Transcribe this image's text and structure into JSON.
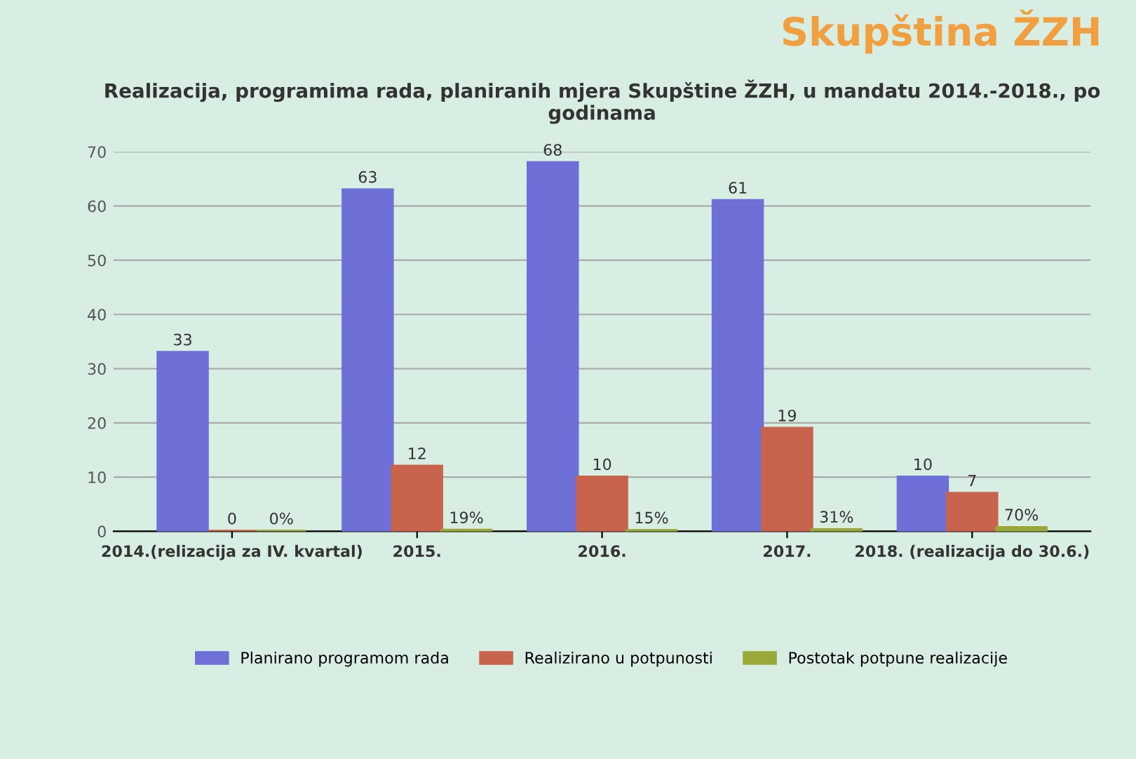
{
  "chart_data": {
    "type": "bar",
    "title": "Realizacija, programima rada, planiranih mjera Skupštine ŽZH, u mandatu 2014.-2018., po godinama",
    "annotations": [
      "Skupština ŽZH"
    ],
    "categories": [
      "2014.(relizacija za IV. kvartal)",
      "2015.",
      "2016.",
      "2017.",
      "2018. (realizacija do 30.6.)"
    ],
    "series": [
      {
        "name": "Planirano programom rada",
        "color": "#6f6fd8",
        "values": [
          33,
          63,
          68,
          61,
          10
        ],
        "value_labels": [
          "33",
          "63",
          "68",
          "61",
          "10"
        ]
      },
      {
        "name": "Realizirano u potpunosti",
        "color": "#c8634e",
        "values": [
          0,
          12,
          10,
          19,
          7
        ],
        "value_labels": [
          "0",
          "12",
          "10",
          "19",
          "7"
        ]
      },
      {
        "name": "Postotak potpune realizacije",
        "color": "#9aa83a",
        "values": [
          0,
          0.19,
          0.15,
          0.31,
          0.7
        ],
        "value_labels": [
          "0%",
          "19%",
          "15%",
          "31%",
          "70%"
        ]
      }
    ],
    "ylim": [
      0,
      70
    ],
    "yticks": [
      0,
      10,
      20,
      30,
      40,
      50,
      60,
      70
    ],
    "grid": "y",
    "legend": "bottom"
  }
}
